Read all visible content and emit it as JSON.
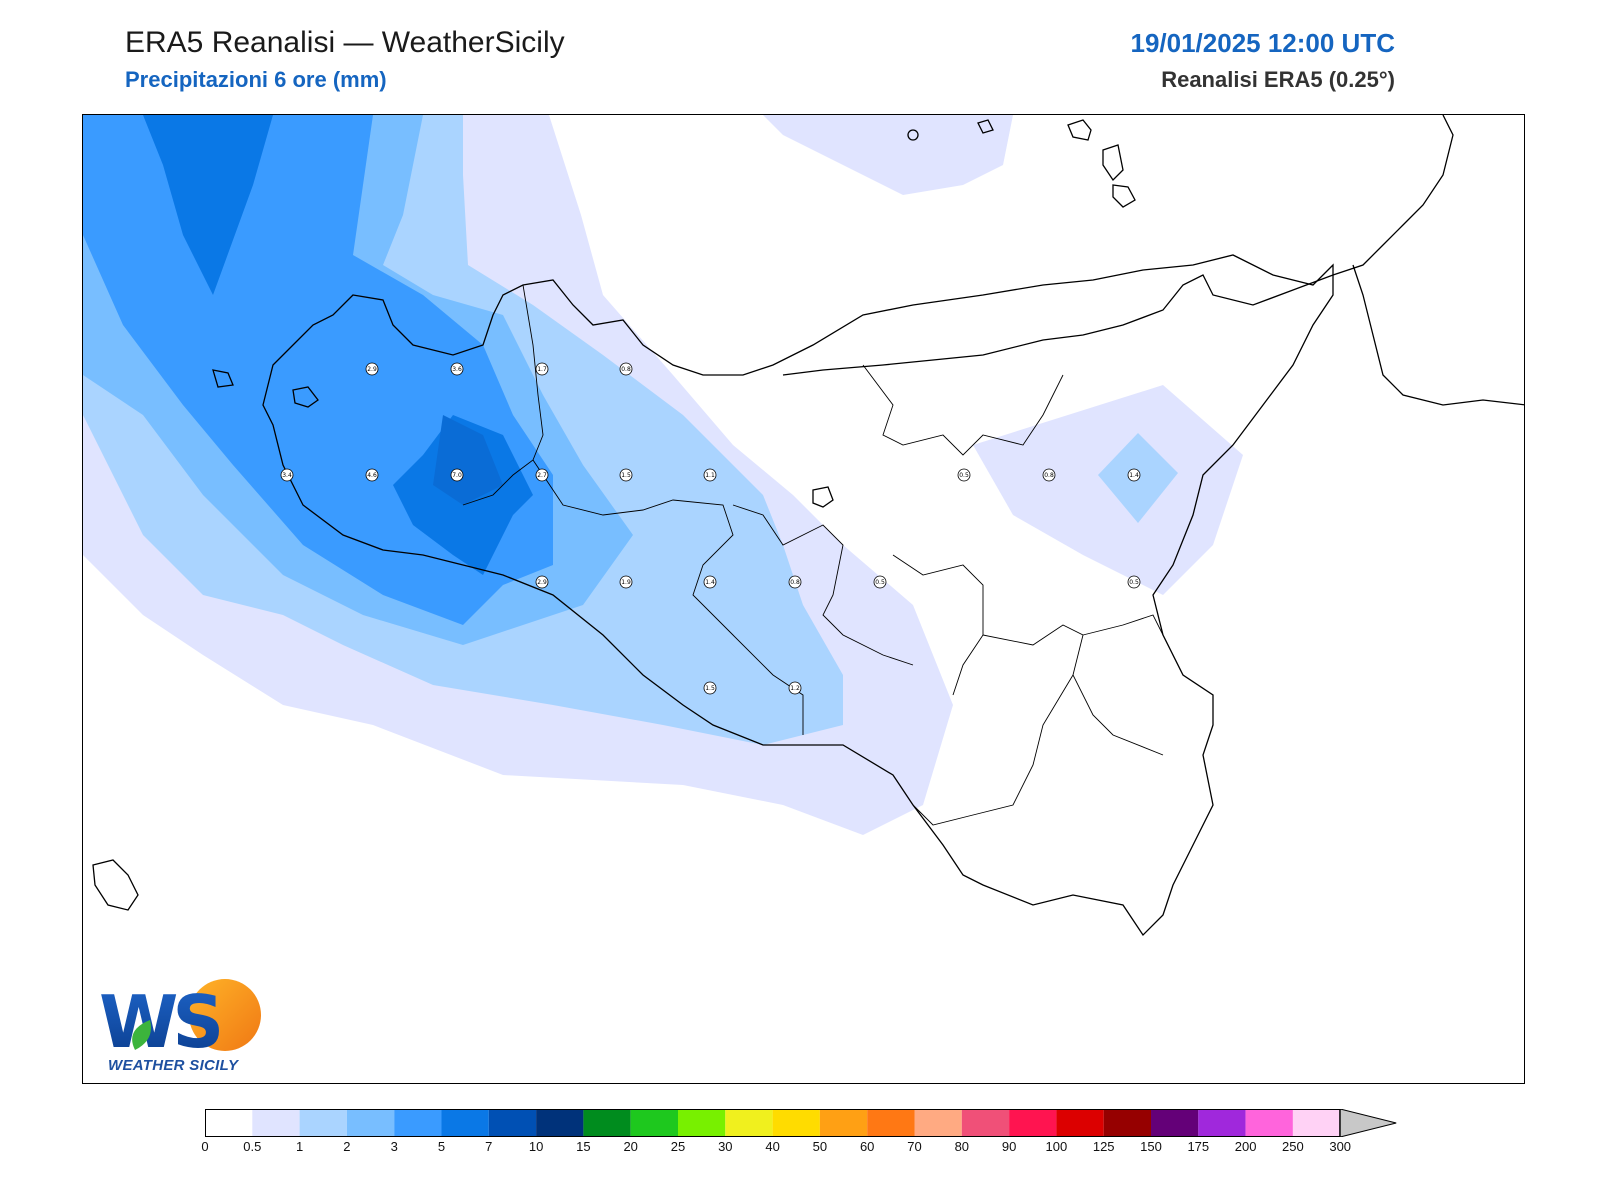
{
  "header": {
    "title": "ERA5 Reanalisi — WeatherSicily",
    "subtitle": "Precipitazioni 6 ore (mm)",
    "datetime": "19/01/2025 12:00 UTC",
    "source": "Reanalisi ERA5 (0.25°)"
  },
  "logo": {
    "text": "WEATHER SICILY",
    "letters": "WS"
  },
  "map": {
    "region": "Sicilia occidentale e centrale",
    "station_values": [
      {
        "label": "2.9",
        "value": 2.9
      },
      {
        "label": "3.6",
        "value": 3.6
      },
      {
        "label": "1.7",
        "value": 1.7
      },
      {
        "label": "0.8",
        "value": 0.8
      },
      {
        "label": "3.4",
        "value": 3.4
      },
      {
        "label": "4.6",
        "value": 4.6
      },
      {
        "label": "7.0",
        "value": 7.0
      },
      {
        "label": "2.7",
        "value": 2.7
      },
      {
        "label": "1.5",
        "value": 1.5
      },
      {
        "label": "1.1",
        "value": 1.1
      },
      {
        "label": "0.5",
        "value": 0.5
      },
      {
        "label": "0.8",
        "value": 0.8
      },
      {
        "label": "1.4",
        "value": 1.4
      },
      {
        "label": "2.9",
        "value": 2.9
      },
      {
        "label": "1.9",
        "value": 1.9
      },
      {
        "label": "1.4",
        "value": 1.4
      },
      {
        "label": "0.8",
        "value": 0.8
      },
      {
        "label": "0.5",
        "value": 0.5
      },
      {
        "label": "0.5",
        "value": 0.5
      },
      {
        "label": "1.5",
        "value": 1.5
      },
      {
        "label": "1.2",
        "value": 1.2
      }
    ]
  },
  "colorbar": {
    "labels": [
      "0",
      "0.5",
      "1",
      "2",
      "3",
      "5",
      "7",
      "10",
      "15",
      "20",
      "25",
      "30",
      "40",
      "50",
      "60",
      "70",
      "80",
      "90",
      "100",
      "125",
      "150",
      "175",
      "200",
      "250",
      "300"
    ],
    "colors": [
      "#ffffff",
      "#e0e4ff",
      "#aad4ff",
      "#78beff",
      "#3a9bff",
      "#0a78e6",
      "#0050b4",
      "#00327a",
      "#008c1e",
      "#1ec81e",
      "#78f000",
      "#f0f01e",
      "#ffdc00",
      "#ffa014",
      "#ff7814",
      "#ffaa82",
      "#f05078",
      "#ff1450",
      "#dc0000",
      "#960000",
      "#640078",
      "#a028dc",
      "#ff64dc",
      "#ffd2f5"
    ],
    "overflow_color": "#c8c8c8"
  }
}
